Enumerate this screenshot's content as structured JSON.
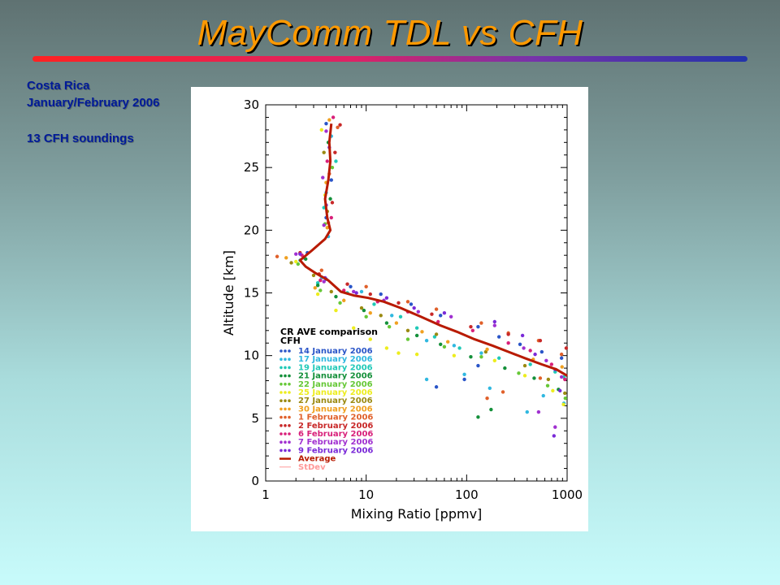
{
  "slide": {
    "title": "MayComm TDL vs CFH",
    "notes": [
      "Costa Rica",
      "January/February 2006",
      "13 CFH soundings"
    ]
  },
  "colors": {
    "title": "#ff9900",
    "notes": "#001a99",
    "rule_start": "#ff2222",
    "rule_end": "#2233aa",
    "average_line": "#b81a00"
  },
  "chart_data": {
    "type": "scatter",
    "title": "",
    "xlabel": "Mixing Ratio [ppmv]",
    "ylabel": "Altitude [km]",
    "xscale": "log",
    "xlim": [
      1,
      1000
    ],
    "ylim": [
      0,
      30
    ],
    "xticks": [
      1,
      10,
      100,
      1000
    ],
    "xtick_labels": [
      "1",
      "10",
      "100",
      "1000"
    ],
    "yticks": [
      0,
      5,
      10,
      15,
      20,
      25,
      30
    ],
    "ytick_labels": [
      "0",
      "5",
      "10",
      "15",
      "20",
      "25",
      "30"
    ],
    "legend": {
      "position": "lower-left",
      "title_lines": [
        "CR AVE comparison",
        "CFH"
      ]
    },
    "series": [
      {
        "name": "14 January 2006",
        "color": "#2a55c8",
        "points": [
          [
            4,
            28.5
          ],
          [
            4.5,
            24
          ],
          [
            4,
            21
          ],
          [
            2.6,
            18.2
          ],
          [
            4,
            16.1
          ],
          [
            7,
            15.5
          ],
          [
            14,
            14.9
          ],
          [
            28,
            14.1
          ],
          [
            55,
            13.2
          ],
          [
            130,
            12.3
          ],
          [
            210,
            11.5
          ],
          [
            340,
            10.9
          ],
          [
            560,
            10.3
          ],
          [
            880,
            9.8
          ],
          [
            130,
            9.2
          ],
          [
            95,
            8.1
          ],
          [
            50,
            7.5
          ]
        ]
      },
      {
        "name": "17 January 2006",
        "color": "#30b8e0",
        "points": [
          [
            4.5,
            27.5
          ],
          [
            4,
            23
          ],
          [
            4.2,
            19.5
          ],
          [
            2.4,
            17.8
          ],
          [
            3.6,
            16.2
          ],
          [
            9,
            15.1
          ],
          [
            18,
            13.2
          ],
          [
            40,
            11.2
          ],
          [
            75,
            10.8
          ],
          [
            140,
            10.2
          ],
          [
            95,
            8.5
          ],
          [
            40,
            8.1
          ],
          [
            170,
            7.4
          ],
          [
            580,
            6.8
          ],
          [
            930,
            6.2
          ],
          [
            400,
            5.5
          ]
        ]
      },
      {
        "name": "19 January 2006",
        "color": "#20c9b8",
        "points": [
          [
            5,
            25.5
          ],
          [
            3.8,
            21.8
          ],
          [
            2.2,
            17.6
          ],
          [
            3.3,
            15.8
          ],
          [
            6.5,
            15
          ],
          [
            12,
            14.1
          ],
          [
            22,
            13.1
          ],
          [
            32,
            12.2
          ],
          [
            48,
            11.5
          ],
          [
            85,
            10.6
          ],
          [
            210,
            9.8
          ],
          [
            430,
            9.3
          ],
          [
            760,
            8.7
          ],
          [
            930,
            8.3
          ]
        ]
      },
      {
        "name": "21 January 2006",
        "color": "#14903a",
        "points": [
          [
            4.2,
            27
          ],
          [
            4.4,
            22.5
          ],
          [
            2.5,
            17.7
          ],
          [
            3.3,
            15.6
          ],
          [
            5,
            14.7
          ],
          [
            9.5,
            13.6
          ],
          [
            16,
            12.6
          ],
          [
            32,
            11.6
          ],
          [
            55,
            10.9
          ],
          [
            110,
            9.9
          ],
          [
            240,
            9
          ],
          [
            470,
            8.2
          ],
          [
            820,
            7.3
          ],
          [
            130,
            5.1
          ],
          [
            175,
            5.7
          ]
        ]
      },
      {
        "name": "22 January 2006",
        "color": "#66c837",
        "points": [
          [
            4.6,
            25
          ],
          [
            3.9,
            20.5
          ],
          [
            2.1,
            17.3
          ],
          [
            3.5,
            15.2
          ],
          [
            5.5,
            14.2
          ],
          [
            10,
            13.1
          ],
          [
            17,
            12.3
          ],
          [
            26,
            11.3
          ],
          [
            60,
            10.7
          ],
          [
            140,
            9.9
          ],
          [
            330,
            8.6
          ],
          [
            640,
            7.6
          ],
          [
            960,
            6.6
          ]
        ]
      },
      {
        "name": "25 January 2006",
        "color": "#eded1e",
        "points": [
          [
            3.6,
            28
          ],
          [
            3.9,
            22.8
          ],
          [
            2,
            17.5
          ],
          [
            3.3,
            14.9
          ],
          [
            5,
            13.6
          ],
          [
            7.5,
            12.2
          ],
          [
            11,
            11.3
          ],
          [
            16,
            10.6
          ],
          [
            21,
            10.2
          ],
          [
            32,
            10.1
          ],
          [
            75,
            10
          ],
          [
            190,
            9.6
          ],
          [
            380,
            8.4
          ],
          [
            720,
            7.2
          ],
          [
            920,
            6.1
          ]
        ]
      },
      {
        "name": "27 January 2006",
        "color": "#9b8a12",
        "points": [
          [
            3.8,
            26.2
          ],
          [
            4.1,
            21.5
          ],
          [
            1.8,
            17.4
          ],
          [
            3,
            16.4
          ],
          [
            4.5,
            15.1
          ],
          [
            9,
            13.8
          ],
          [
            14,
            13.2
          ],
          [
            26,
            12
          ],
          [
            50,
            11.7
          ],
          [
            155,
            10.3
          ],
          [
            380,
            9.2
          ],
          [
            650,
            8.1
          ],
          [
            950,
            7
          ]
        ]
      },
      {
        "name": "30 January 2006",
        "color": "#f0a020",
        "points": [
          [
            4.3,
            28.8
          ],
          [
            4,
            23.8
          ],
          [
            4.1,
            20.2
          ],
          [
            1.6,
            17.8
          ],
          [
            3.1,
            15.4
          ],
          [
            6,
            14.4
          ],
          [
            11,
            13.4
          ],
          [
            20,
            12.6
          ],
          [
            36,
            11.9
          ],
          [
            65,
            11.1
          ],
          [
            160,
            10.5
          ],
          [
            460,
            9.7
          ],
          [
            890,
            9.1
          ]
        ]
      },
      {
        "name": "1 February 2006",
        "color": "#e0602a",
        "points": [
          [
            5.2,
            28.2
          ],
          [
            4.3,
            24.5
          ],
          [
            4.2,
            20.6
          ],
          [
            1.3,
            17.9
          ],
          [
            3.6,
            16.8
          ],
          [
            10,
            15.5
          ],
          [
            26,
            14.3
          ],
          [
            50,
            13.7
          ],
          [
            140,
            12.6
          ],
          [
            260,
            11.8
          ],
          [
            520,
            11.2
          ],
          [
            880,
            10.1
          ],
          [
            540,
            8.2
          ],
          [
            160,
            6.6
          ],
          [
            230,
            7.1
          ]
        ]
      },
      {
        "name": "2 February 2006",
        "color": "#c82828",
        "points": [
          [
            5.5,
            28.4
          ],
          [
            4.9,
            26.2
          ],
          [
            4.6,
            22.2
          ],
          [
            2.2,
            18.2
          ],
          [
            3.4,
            16.5
          ],
          [
            6.5,
            15.7
          ],
          [
            11,
            14.9
          ],
          [
            21,
            14.2
          ],
          [
            45,
            13.3
          ],
          [
            110,
            12.3
          ],
          [
            260,
            11.7
          ],
          [
            540,
            11.2
          ],
          [
            980,
            10.6
          ]
        ]
      },
      {
        "name": "6 February 2006",
        "color": "#d8207a",
        "points": [
          [
            4.7,
            29
          ],
          [
            4.1,
            25.5
          ],
          [
            4.5,
            21
          ],
          [
            2.3,
            18
          ],
          [
            3.5,
            16
          ],
          [
            6,
            15.2
          ],
          [
            13,
            14.3
          ],
          [
            26,
            13.5
          ],
          [
            52,
            12.7
          ],
          [
            115,
            12
          ],
          [
            260,
            11
          ],
          [
            430,
            10.4
          ],
          [
            700,
            9.3
          ],
          [
            950,
            8.1
          ]
        ]
      },
      {
        "name": "7 February 2006",
        "color": "#a030d0",
        "points": [
          [
            4,
            27.9
          ],
          [
            3.7,
            24.2
          ],
          [
            3.8,
            20.4
          ],
          [
            2,
            18.1
          ],
          [
            3.8,
            15.9
          ],
          [
            7.5,
            15.1
          ],
          [
            15,
            14.4
          ],
          [
            33,
            13.5
          ],
          [
            70,
            13.1
          ],
          [
            190,
            12.4
          ],
          [
            370,
            10.6
          ],
          [
            620,
            9.6
          ],
          [
            880,
            8.3
          ],
          [
            520,
            5.5
          ],
          [
            760,
            4.3
          ]
        ]
      },
      {
        "name": "9 February 2006",
        "color": "#7a2ad8",
        "points": [
          [
            4.3,
            26.6
          ],
          [
            4,
            22
          ],
          [
            2.2,
            18.1
          ],
          [
            3.9,
            16.2
          ],
          [
            8,
            15
          ],
          [
            16,
            14.6
          ],
          [
            30,
            13.8
          ],
          [
            60,
            13.4
          ],
          [
            190,
            12.7
          ],
          [
            360,
            11.6
          ],
          [
            480,
            10.1
          ],
          [
            760,
            8.9
          ],
          [
            850,
            7.2
          ],
          [
            740,
            3.6
          ]
        ]
      }
    ],
    "lines": [
      {
        "name": "Average",
        "color": "#b81a00",
        "points": [
          [
            4.5,
            28.5
          ],
          [
            4.3,
            27
          ],
          [
            4.4,
            25.5
          ],
          [
            4.2,
            24
          ],
          [
            3.9,
            22.5
          ],
          [
            4.1,
            21
          ],
          [
            4.4,
            20
          ],
          [
            3.9,
            19.3
          ],
          [
            2.9,
            18.4
          ],
          [
            2.2,
            17.6
          ],
          [
            2.5,
            17.1
          ],
          [
            3.1,
            16.6
          ],
          [
            4.2,
            16
          ],
          [
            5.6,
            15.1
          ],
          [
            7.5,
            14.8
          ],
          [
            10.5,
            14.6
          ],
          [
            15,
            14.3
          ],
          [
            22,
            13.8
          ],
          [
            35,
            13.1
          ],
          [
            55,
            12.4
          ],
          [
            80,
            11.9
          ],
          [
            120,
            11.3
          ],
          [
            180,
            10.8
          ],
          [
            260,
            10.3
          ],
          [
            380,
            9.8
          ],
          [
            560,
            9.3
          ],
          [
            780,
            8.9
          ],
          [
            1000,
            8.4
          ]
        ]
      },
      {
        "name": "StDev",
        "color": "#ff9999",
        "points": []
      }
    ]
  }
}
